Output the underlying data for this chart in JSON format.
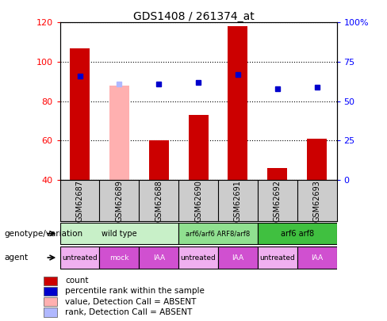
{
  "title": "GDS1408 / 261374_at",
  "samples": [
    "GSM62687",
    "GSM62689",
    "GSM62688",
    "GSM62690",
    "GSM62691",
    "GSM62692",
    "GSM62693"
  ],
  "count_values": [
    107,
    null,
    60,
    73,
    118,
    46,
    61
  ],
  "count_absent_values": [
    null,
    88,
    null,
    null,
    null,
    null,
    null
  ],
  "percentile_values": [
    66,
    null,
    61,
    62,
    67,
    58,
    59
  ],
  "percentile_absent_values": [
    null,
    61,
    null,
    null,
    null,
    null,
    null
  ],
  "bar_base": 40,
  "ylim_left": [
    40,
    120
  ],
  "ylim_right": [
    0,
    100
  ],
  "yticks_left": [
    40,
    60,
    80,
    100,
    120
  ],
  "yticks_right": [
    0,
    25,
    50,
    75,
    100
  ],
  "yticklabels_right": [
    "0",
    "25",
    "50",
    "75",
    "100%"
  ],
  "genotype_groups": [
    {
      "label": "wild type",
      "start": 0,
      "end": 2,
      "color": "#c8f0c8"
    },
    {
      "label": "arf6/arf6 ARF8/arf8",
      "start": 3,
      "end": 4,
      "color": "#90e090"
    },
    {
      "label": "arf6 arf8",
      "start": 5,
      "end": 6,
      "color": "#40c040"
    }
  ],
  "agent_groups": [
    {
      "label": "untreated",
      "start": 0,
      "end": 0,
      "color": "#f0b0f0"
    },
    {
      "label": "mock",
      "start": 1,
      "end": 1,
      "color": "#d050d0"
    },
    {
      "label": "IAA",
      "start": 2,
      "end": 2,
      "color": "#d050d0"
    },
    {
      "label": "untreated",
      "start": 3,
      "end": 3,
      "color": "#f0b0f0"
    },
    {
      "label": "IAA",
      "start": 4,
      "end": 4,
      "color": "#d050d0"
    },
    {
      "label": "untreated",
      "start": 5,
      "end": 5,
      "color": "#f0b0f0"
    },
    {
      "label": "IAA",
      "start": 6,
      "end": 6,
      "color": "#d050d0"
    }
  ],
  "bar_color": "#cc0000",
  "bar_absent_color": "#ffb0b0",
  "percentile_color": "#0000cc",
  "percentile_absent_color": "#b0b8ff",
  "bar_width": 0.5,
  "sample_area_bg": "#cccccc",
  "legend_items": [
    {
      "label": "count",
      "color": "#cc0000"
    },
    {
      "label": "percentile rank within the sample",
      "color": "#0000cc"
    },
    {
      "label": "value, Detection Call = ABSENT",
      "color": "#ffb0b0"
    },
    {
      "label": "rank, Detection Call = ABSENT",
      "color": "#b0b8ff"
    }
  ]
}
